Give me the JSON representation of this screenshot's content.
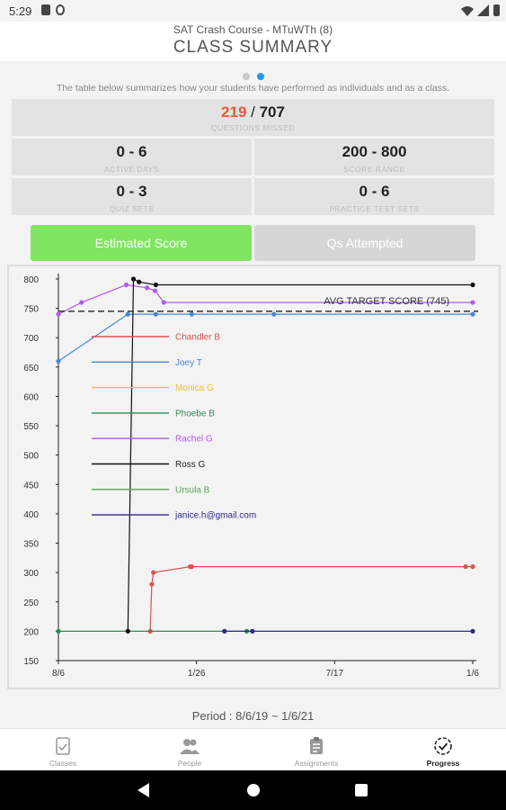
{
  "status_bar": {
    "time": "5:29"
  },
  "header": {
    "subtitle": "SAT Crash Course - MTuWTh (8)",
    "title": "CLASS SUMMARY"
  },
  "description": "The table below summarizes how your students have performed as individuals and as a class.",
  "stats": {
    "missed_value": "219",
    "missed_sep": " / ",
    "missed_total": "707",
    "missed_label": "QUESTIONS MISSED",
    "active_days": "0 - 6",
    "active_days_label": "ACTIVE DAYS",
    "score_range": "200 - 800",
    "score_range_label": "SCORE RANGE",
    "quiz_sets": "0 - 3",
    "quiz_sets_label": "QUIZ SETS",
    "practice_sets": "0 - 6",
    "practice_sets_label": "PRACTICE TEST SETS"
  },
  "tabs": [
    {
      "label": "Estimated Score",
      "active": true
    },
    {
      "label": "Qs Attempted",
      "active": false
    }
  ],
  "colors": {
    "accent": "#80e660",
    "tab_inactive": "#d6d6d6",
    "dot_active": "#2196f3",
    "dot_inactive": "#c8c8c8",
    "missed": "#e8573a"
  },
  "chart_data": {
    "type": "line",
    "yticks": [
      150,
      200,
      250,
      300,
      350,
      400,
      450,
      500,
      550,
      600,
      650,
      700,
      750,
      800
    ],
    "ylim": [
      150,
      800
    ],
    "xticks": [
      "8/6",
      "1/26",
      "7/17",
      "1/6"
    ],
    "xlim": [
      "2019-08-06",
      "2021-01-06"
    ],
    "grid": false,
    "legend_position": "center-left",
    "avg_target": {
      "label": "AVG TARGET SCORE (745)",
      "value": 745
    },
    "series": [
      {
        "name": "Chandler B",
        "color": "#d9534f",
        "points": [
          [
            "2019-11-29",
            200
          ],
          [
            "2019-12-01",
            280
          ],
          [
            "2019-12-03",
            300
          ],
          [
            "2020-01-18",
            310
          ],
          [
            "2020-01-20",
            310
          ],
          [
            "2020-12-28",
            310
          ],
          [
            "2021-01-06",
            310
          ]
        ]
      },
      {
        "name": "Joey T",
        "color": "#4a86d8",
        "points": [
          [
            "2019-08-06",
            660
          ],
          [
            "2019-11-01",
            740
          ],
          [
            "2019-12-06",
            740
          ],
          [
            "2020-01-20",
            740
          ],
          [
            "2020-05-02",
            740
          ],
          [
            "2021-01-06",
            740
          ]
        ]
      },
      {
        "name": "Monica G",
        "color": "#f0c040",
        "points": []
      },
      {
        "name": "Phoebe B",
        "color": "#2e8b57",
        "points": [
          [
            "2019-08-06",
            200
          ],
          [
            "2020-03-29",
            200
          ]
        ]
      },
      {
        "name": "Rachel G",
        "color": "#b35ae8",
        "points": [
          [
            "2019-08-06",
            740
          ],
          [
            "2019-09-04",
            760
          ],
          [
            "2019-10-30",
            790
          ],
          [
            "2019-11-25",
            785
          ],
          [
            "2019-12-05",
            780
          ],
          [
            "2019-12-16",
            760
          ],
          [
            "2021-01-06",
            760
          ]
        ]
      },
      {
        "name": "Ross G",
        "color": "#111111",
        "points": [
          [
            "2019-11-01",
            200
          ],
          [
            "2019-11-08",
            800
          ],
          [
            "2019-11-15",
            795
          ],
          [
            "2019-12-06",
            790
          ],
          [
            "2021-01-06",
            790
          ]
        ]
      },
      {
        "name": "Ursula B",
        "color": "#5aa05a",
        "points": []
      },
      {
        "name": "janice.h@gmail.com",
        "color": "#2a2a8a",
        "points": [
          [
            "2020-03-01",
            200
          ],
          [
            "2020-04-05",
            200
          ],
          [
            "2021-01-06",
            200
          ]
        ]
      }
    ]
  },
  "period": "Period : 8/6/19 ~ 1/6/21",
  "bottom_nav": [
    {
      "label": "Classes",
      "active": false
    },
    {
      "label": "People",
      "active": false
    },
    {
      "label": "Assignments",
      "active": false
    },
    {
      "label": "Progress",
      "active": true
    }
  ]
}
